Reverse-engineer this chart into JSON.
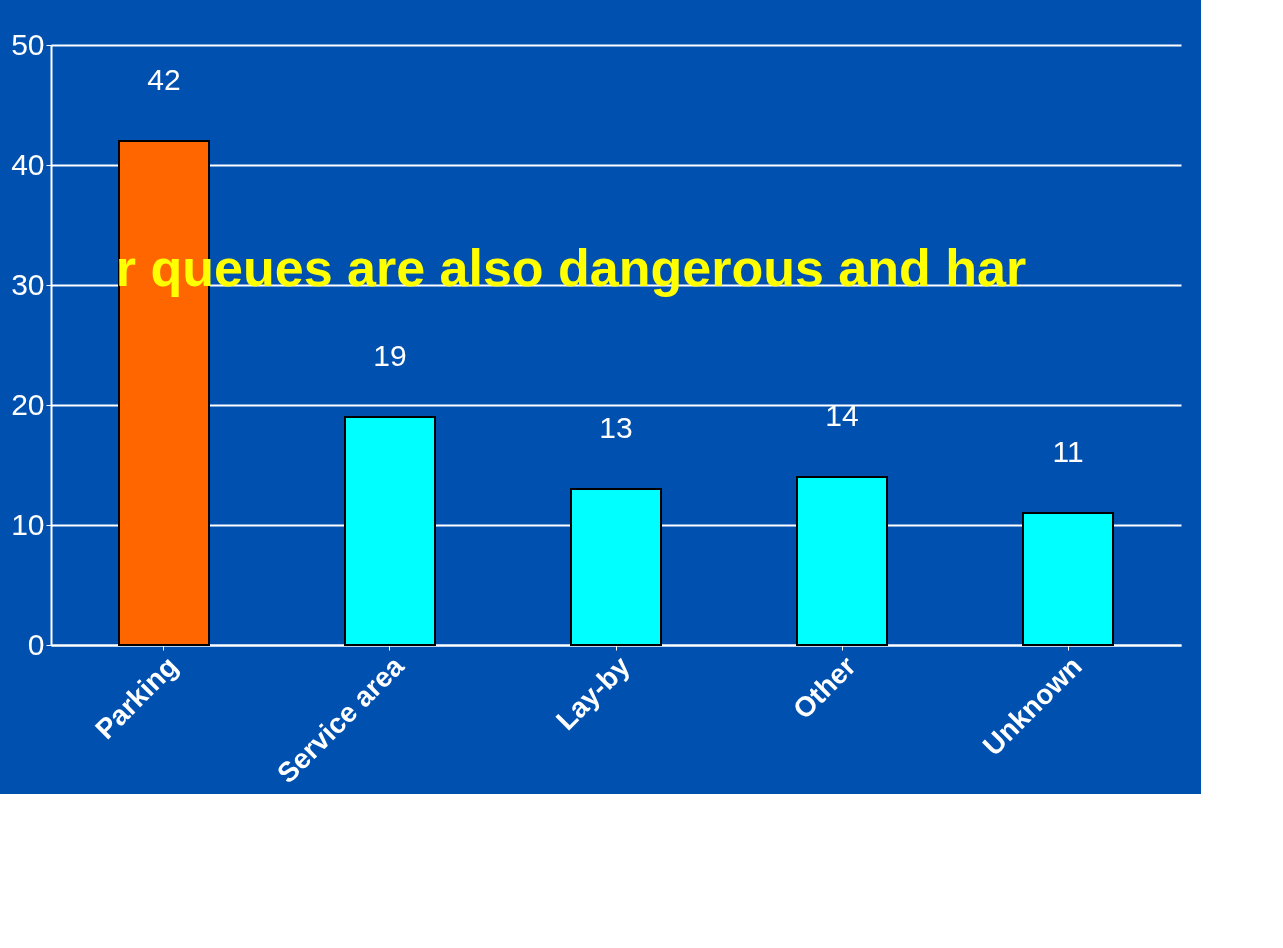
{
  "chart_data": {
    "type": "bar",
    "categories": [
      "Parking",
      "Service area",
      "Lay-by",
      "Other",
      "Unknown"
    ],
    "values": [
      42,
      19,
      13,
      14,
      11
    ],
    "colors": [
      "#ff6600",
      "#00ffff",
      "#00ffff",
      "#00ffff",
      "#00ffff"
    ],
    "ylim": [
      0,
      50
    ],
    "yticks": [
      0,
      10,
      20,
      30,
      40,
      50
    ],
    "grid": "y",
    "data_labels": true,
    "annotations": [
      "r queues are also dangerous and har"
    ]
  }
}
